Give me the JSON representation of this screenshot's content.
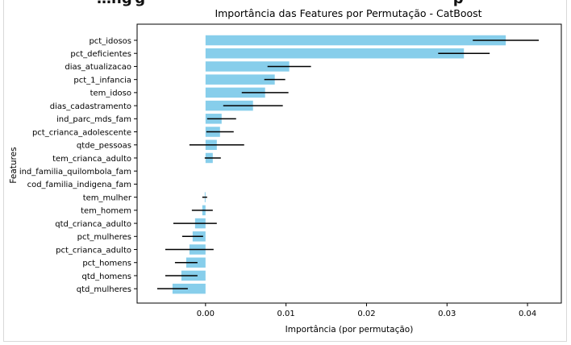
{
  "chart_data": {
    "type": "bar",
    "orientation": "horizontal",
    "title": "Importância das Features por Permutação - CatBoost",
    "xlabel": "Importância (por permutação)",
    "ylabel": "Features",
    "xlim": [
      -0.0085,
      0.0442
    ],
    "xticks": [
      0.0,
      0.01,
      0.02,
      0.03,
      0.04
    ],
    "xtick_labels": [
      "0.00",
      "0.01",
      "0.02",
      "0.03",
      "0.04"
    ],
    "grid": false,
    "bar_color": "#87ceeb",
    "error_color": "#000000",
    "categories": [
      "pct_idosos",
      "pct_deficientes",
      "dias_atualizacao",
      "pct_1_infancia",
      "tem_idoso",
      "dias_cadastramento",
      "ind_parc_mds_fam",
      "pct_crianca_adolescente",
      "qtde_pessoas",
      "tem_crianca_adulto",
      "ind_familia_quilombola_fam",
      "cod_familia_indigena_fam",
      "tem_mulher",
      "tem_homem",
      "qtd_crianca_adulto",
      "pct_mulheres",
      "pct_crianca_adulto",
      "pct_homens",
      "qtd_homens",
      "qtd_mulheres"
    ],
    "values": [
      0.0373,
      0.0321,
      0.0104,
      0.0086,
      0.0074,
      0.0059,
      0.002,
      0.0018,
      0.0014,
      0.0009,
      0.0,
      0.0,
      -0.0001,
      -0.0004,
      -0.0013,
      -0.0016,
      -0.002,
      -0.0024,
      -0.003,
      -0.0041
    ],
    "errors": [
      0.0041,
      0.0032,
      0.0027,
      0.0013,
      0.0029,
      0.0037,
      0.0018,
      0.0017,
      0.0034,
      0.001,
      0.0,
      0.0,
      0.0003,
      0.0013,
      0.0027,
      0.0013,
      0.003,
      0.0014,
      0.002,
      0.0019
    ]
  }
}
